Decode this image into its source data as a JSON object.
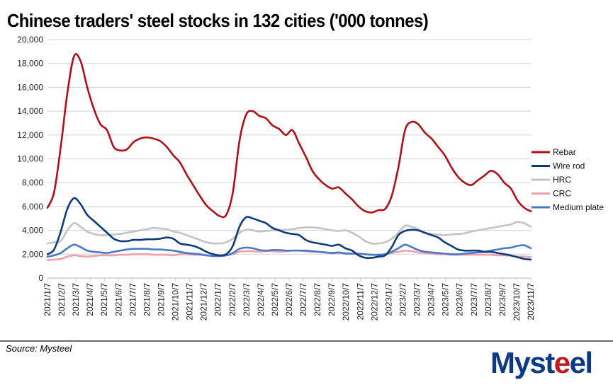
{
  "title": "Chinese traders' steel stocks in 132 cities ('000 tonnes)",
  "source": "Source: Mysteel",
  "logo": {
    "text_before": "Myst",
    "text_accent": "e",
    "text_after": "el",
    "brand_color": "#0b3a8a",
    "accent_color": "#c41a22"
  },
  "chart_data": {
    "type": "line",
    "title": "Chinese traders' steel stocks in 132 cities ('000 tonnes)",
    "xlabel": "",
    "ylabel": "",
    "ylim": [
      0,
      20000
    ],
    "yticks": [
      0,
      2000,
      4000,
      6000,
      8000,
      10000,
      12000,
      14000,
      16000,
      18000,
      20000
    ],
    "ytick_labels": [
      "0",
      "2,000",
      "4,000",
      "6,000",
      "8,000",
      "10,000",
      "12,000",
      "14,000",
      "16,000",
      "18,000",
      "20,000"
    ],
    "grid": true,
    "legend_position": "right",
    "x_tick_labels": [
      "2021/1/7",
      "2021/2/7",
      "2021/3/7",
      "2021/4/7",
      "2021/5/7",
      "2021/6/7",
      "2021/7/7",
      "2021/8/7",
      "2021/9/7",
      "2021/10/7",
      "2021/11/7",
      "2021/12/7",
      "2022/1/7",
      "2022/2/7",
      "2022/3/7",
      "2022/4/7",
      "2022/5/7",
      "2022/6/7",
      "2022/7/7",
      "2022/8/7",
      "2022/9/7",
      "2022/10/7",
      "2022/11/7",
      "2022/12/7",
      "2023/1/7",
      "2023/2/7",
      "2023/3/7",
      "2023/4/7",
      "2023/5/7",
      "2023/6/7",
      "2023/7/7",
      "2023/8/7",
      "2023/9/7",
      "2023/10/7",
      "2023/11/7"
    ],
    "x_step": "half-month, starting 2021/1/7",
    "series": [
      {
        "name": "Rebar",
        "color": "#b0101a",
        "values": [
          5900,
          7200,
          11000,
          15500,
          18600,
          18200,
          16000,
          14200,
          12900,
          12400,
          11000,
          10700,
          10800,
          11400,
          11700,
          11800,
          11700,
          11500,
          11000,
          10300,
          9700,
          8700,
          7800,
          6900,
          6100,
          5600,
          5200,
          5300,
          7200,
          11500,
          13700,
          14000,
          13600,
          13400,
          12800,
          12500,
          12000,
          12400,
          11300,
          10200,
          9000,
          8300,
          7800,
          7500,
          7600,
          7100,
          6600,
          6000,
          5600,
          5500,
          5700,
          5800,
          6900,
          9300,
          12400,
          13100,
          12900,
          12200,
          11700,
          11000,
          10300,
          9300,
          8500,
          8000,
          7800,
          8200,
          8600,
          9000,
          8700,
          8000,
          7500,
          6500,
          5900,
          5600
        ]
      },
      {
        "name": "Wire rod",
        "color": "#0d3b7e",
        "values": [
          2000,
          2400,
          3900,
          5800,
          6700,
          6200,
          5300,
          4800,
          4300,
          3800,
          3300,
          3100,
          3100,
          3200,
          3200,
          3250,
          3250,
          3300,
          3400,
          3300,
          2900,
          2800,
          2700,
          2500,
          2200,
          2000,
          1900,
          2000,
          2700,
          4300,
          5100,
          5000,
          4800,
          4600,
          4200,
          4000,
          3800,
          3700,
          3600,
          3200,
          3000,
          2900,
          2800,
          2700,
          2800,
          2500,
          2300,
          1900,
          1700,
          1700,
          1800,
          1900,
          2600,
          3600,
          3950,
          4050,
          4000,
          3800,
          3600,
          3400,
          3000,
          2700,
          2400,
          2300,
          2300,
          2300,
          2200,
          2200,
          2100,
          2000,
          1900,
          1750,
          1600,
          1550
        ]
      },
      {
        "name": "HRC",
        "color": "#c4c4c4",
        "values": [
          2900,
          3000,
          3100,
          4000,
          4600,
          4300,
          3900,
          3700,
          3600,
          3600,
          3650,
          3700,
          3800,
          3900,
          4000,
          4100,
          4200,
          4150,
          4100,
          3900,
          3800,
          3600,
          3400,
          3200,
          3000,
          2900,
          2900,
          3000,
          3300,
          3800,
          4050,
          4000,
          3900,
          3950,
          4000,
          4000,
          4050,
          4100,
          4200,
          4250,
          4250,
          4200,
          4100,
          4000,
          3950,
          4000,
          3800,
          3500,
          3100,
          2900,
          2900,
          3000,
          3300,
          3800,
          4400,
          4300,
          4100,
          3800,
          3700,
          3650,
          3600,
          3650,
          3700,
          3750,
          3900,
          4000,
          4100,
          4200,
          4300,
          4400,
          4500,
          4700,
          4600,
          4300
        ]
      },
      {
        "name": "CRC",
        "color": "#f0a0aa",
        "values": [
          1500,
          1550,
          1600,
          1800,
          1900,
          1850,
          1800,
          1850,
          1900,
          1900,
          1900,
          1950,
          1950,
          2000,
          2000,
          2000,
          1950,
          1950,
          1950,
          1900,
          2000,
          2000,
          1950,
          1950,
          1900,
          1850,
          1850,
          1900,
          2000,
          2200,
          2250,
          2250,
          2200,
          2250,
          2250,
          2200,
          2250,
          2300,
          2300,
          2250,
          2200,
          2200,
          2150,
          2100,
          2100,
          2100,
          2050,
          2000,
          2000,
          1950,
          1950,
          2000,
          2100,
          2200,
          2300,
          2250,
          2150,
          2100,
          2050,
          2000,
          2000,
          1950,
          1950,
          1950,
          1950,
          1950,
          1950,
          1950,
          1900,
          1900,
          1850,
          1800,
          1800,
          1750
        ]
      },
      {
        "name": "Medium plate",
        "color": "#4a78c8",
        "values": [
          1800,
          1900,
          2100,
          2500,
          2800,
          2600,
          2300,
          2200,
          2150,
          2100,
          2200,
          2300,
          2400,
          2450,
          2450,
          2450,
          2400,
          2400,
          2350,
          2300,
          2200,
          2100,
          2050,
          2000,
          1900,
          1850,
          1850,
          1900,
          2100,
          2450,
          2550,
          2500,
          2350,
          2300,
          2350,
          2350,
          2300,
          2300,
          2300,
          2300,
          2250,
          2200,
          2150,
          2100,
          2150,
          2050,
          2050,
          2050,
          2000,
          1950,
          1950,
          2000,
          2200,
          2500,
          2800,
          2600,
          2350,
          2200,
          2150,
          2100,
          2050,
          2000,
          2000,
          2050,
          2100,
          2150,
          2200,
          2300,
          2400,
          2500,
          2550,
          2700,
          2750,
          2500
        ]
      }
    ]
  }
}
